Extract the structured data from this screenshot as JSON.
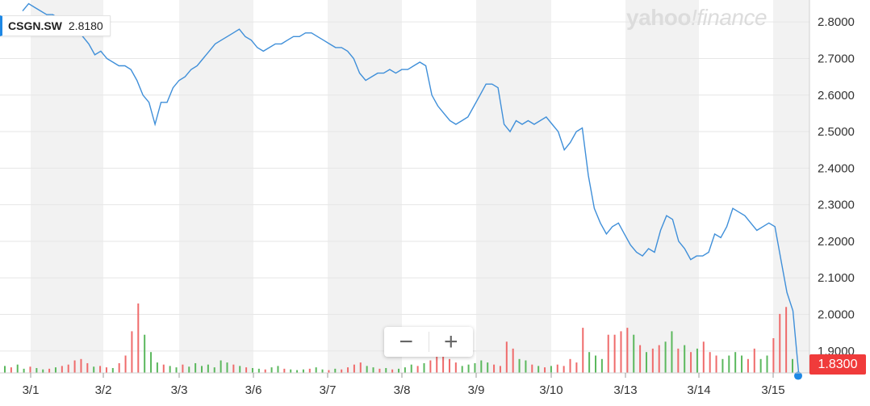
{
  "colors": {
    "line": "#3f8fd9",
    "up": "#5bb85d",
    "down": "#ef6b6b",
    "accent": "#1e88e5",
    "price_tag": "#f03b3b",
    "band": "#f2f2f2"
  },
  "legend": {
    "symbol": "CSGN.SW",
    "value": "2.8180"
  },
  "brand": {
    "left": "yahoo",
    "slash": "!",
    "right": "finance"
  },
  "zoom": {
    "minus": "−",
    "plus": "+"
  },
  "last_price": "1.8300",
  "chart_data": {
    "type": "line",
    "title": "",
    "xlabel": "",
    "ylabel": "",
    "ylim": [
      1.84,
      2.86
    ],
    "y_ticks": [
      "2.8000",
      "2.7000",
      "2.6000",
      "2.5000",
      "2.4000",
      "2.3000",
      "2.2000",
      "2.1000",
      "2.0000",
      "1.9000"
    ],
    "y_tick_values": [
      2.8,
      2.7,
      2.6,
      2.5,
      2.4,
      2.3,
      2.2,
      2.1,
      2.0,
      1.9
    ],
    "x_ticks": [
      "3/1",
      "3/2",
      "3/3",
      "3/6",
      "3/7",
      "3/8",
      "3/9",
      "3/10",
      "3/13",
      "3/14",
      "3/15"
    ],
    "grid": true,
    "series": [
      {
        "values": [
          2.83,
          2.85,
          2.84,
          2.83,
          2.82,
          2.82,
          2.81,
          2.8,
          2.79,
          2.78,
          2.76,
          2.74,
          2.71,
          2.72,
          2.7,
          2.69,
          2.68,
          2.68,
          2.67,
          2.64,
          2.6,
          2.58,
          2.52,
          2.58,
          2.58,
          2.62,
          2.64,
          2.65,
          2.67,
          2.68,
          2.7,
          2.72,
          2.74,
          2.75,
          2.76,
          2.77,
          2.78,
          2.76,
          2.75,
          2.73,
          2.72,
          2.73,
          2.74,
          2.74,
          2.75,
          2.76,
          2.76,
          2.77,
          2.77,
          2.76,
          2.75,
          2.74,
          2.73,
          2.73,
          2.72,
          2.7,
          2.66,
          2.64,
          2.65,
          2.66,
          2.66,
          2.67,
          2.66,
          2.67,
          2.67,
          2.68,
          2.69,
          2.68,
          2.6,
          2.57,
          2.55,
          2.53,
          2.52,
          2.53,
          2.54,
          2.57,
          2.6,
          2.63,
          2.63,
          2.62,
          2.52,
          2.5,
          2.53,
          2.52,
          2.53,
          2.52,
          2.53,
          2.54,
          2.52,
          2.5,
          2.45,
          2.47,
          2.5,
          2.51,
          2.38,
          2.29,
          2.25,
          2.22,
          2.24,
          2.25,
          2.22,
          2.19,
          2.17,
          2.16,
          2.18,
          2.17,
          2.23,
          2.27,
          2.26,
          2.2,
          2.18,
          2.15,
          2.16,
          2.16,
          2.17,
          2.22,
          2.21,
          2.24,
          2.29,
          2.28,
          2.27,
          2.25,
          2.23,
          2.24,
          2.25,
          2.24,
          2.15,
          2.06,
          2.01,
          1.83
        ]
      }
    ],
    "volume": [
      {
        "v": 0.1,
        "d": "up"
      },
      {
        "v": 0.08,
        "d": "down"
      },
      {
        "v": 0.12,
        "d": "up"
      },
      {
        "v": 0.06,
        "d": "up"
      },
      {
        "v": 0.09,
        "d": "down"
      },
      {
        "v": 0.07,
        "d": "up"
      },
      {
        "v": 0.05,
        "d": "up"
      },
      {
        "v": 0.06,
        "d": "down"
      },
      {
        "v": 0.08,
        "d": "up"
      },
      {
        "v": 0.1,
        "d": "down"
      },
      {
        "v": 0.12,
        "d": "down"
      },
      {
        "v": 0.18,
        "d": "down"
      },
      {
        "v": 0.2,
        "d": "down"
      },
      {
        "v": 0.14,
        "d": "down"
      },
      {
        "v": 0.09,
        "d": "up"
      },
      {
        "v": 0.1,
        "d": "down"
      },
      {
        "v": 0.08,
        "d": "down"
      },
      {
        "v": 0.07,
        "d": "up"
      },
      {
        "v": 0.14,
        "d": "down"
      },
      {
        "v": 0.25,
        "d": "down"
      },
      {
        "v": 0.6,
        "d": "down"
      },
      {
        "v": 1.0,
        "d": "down"
      },
      {
        "v": 0.55,
        "d": "up"
      },
      {
        "v": 0.3,
        "d": "up"
      },
      {
        "v": 0.15,
        "d": "up"
      },
      {
        "v": 0.12,
        "d": "down"
      },
      {
        "v": 0.1,
        "d": "up"
      },
      {
        "v": 0.08,
        "d": "up"
      },
      {
        "v": 0.12,
        "d": "down"
      },
      {
        "v": 0.09,
        "d": "up"
      },
      {
        "v": 0.14,
        "d": "up"
      },
      {
        "v": 0.1,
        "d": "up"
      },
      {
        "v": 0.12,
        "d": "up"
      },
      {
        "v": 0.08,
        "d": "up"
      },
      {
        "v": 0.18,
        "d": "up"
      },
      {
        "v": 0.15,
        "d": "up"
      },
      {
        "v": 0.12,
        "d": "down"
      },
      {
        "v": 0.1,
        "d": "up"
      },
      {
        "v": 0.08,
        "d": "down"
      },
      {
        "v": 0.07,
        "d": "up"
      },
      {
        "v": 0.06,
        "d": "up"
      },
      {
        "v": 0.05,
        "d": "down"
      },
      {
        "v": 0.08,
        "d": "up"
      },
      {
        "v": 0.1,
        "d": "up"
      },
      {
        "v": 0.06,
        "d": "down"
      },
      {
        "v": 0.05,
        "d": "up"
      },
      {
        "v": 0.04,
        "d": "up"
      },
      {
        "v": 0.05,
        "d": "up"
      },
      {
        "v": 0.06,
        "d": "down"
      },
      {
        "v": 0.08,
        "d": "up"
      },
      {
        "v": 0.05,
        "d": "up"
      },
      {
        "v": 0.04,
        "d": "down"
      },
      {
        "v": 0.06,
        "d": "up"
      },
      {
        "v": 0.05,
        "d": "down"
      },
      {
        "v": 0.08,
        "d": "down"
      },
      {
        "v": 0.12,
        "d": "down"
      },
      {
        "v": 0.15,
        "d": "down"
      },
      {
        "v": 0.1,
        "d": "up"
      },
      {
        "v": 0.08,
        "d": "up"
      },
      {
        "v": 0.06,
        "d": "down"
      },
      {
        "v": 0.07,
        "d": "up"
      },
      {
        "v": 0.05,
        "d": "down"
      },
      {
        "v": 0.06,
        "d": "up"
      },
      {
        "v": 0.08,
        "d": "up"
      },
      {
        "v": 0.12,
        "d": "up"
      },
      {
        "v": 0.1,
        "d": "down"
      },
      {
        "v": 0.14,
        "d": "up"
      },
      {
        "v": 0.18,
        "d": "down"
      },
      {
        "v": 0.3,
        "d": "down"
      },
      {
        "v": 0.25,
        "d": "down"
      },
      {
        "v": 0.2,
        "d": "down"
      },
      {
        "v": 0.15,
        "d": "down"
      },
      {
        "v": 0.1,
        "d": "up"
      },
      {
        "v": 0.12,
        "d": "up"
      },
      {
        "v": 0.14,
        "d": "up"
      },
      {
        "v": 0.18,
        "d": "up"
      },
      {
        "v": 0.15,
        "d": "up"
      },
      {
        "v": 0.12,
        "d": "down"
      },
      {
        "v": 0.1,
        "d": "down"
      },
      {
        "v": 0.45,
        "d": "down"
      },
      {
        "v": 0.35,
        "d": "down"
      },
      {
        "v": 0.2,
        "d": "up"
      },
      {
        "v": 0.18,
        "d": "up"
      },
      {
        "v": 0.12,
        "d": "down"
      },
      {
        "v": 0.1,
        "d": "up"
      },
      {
        "v": 0.08,
        "d": "down"
      },
      {
        "v": 0.1,
        "d": "up"
      },
      {
        "v": 0.12,
        "d": "down"
      },
      {
        "v": 0.1,
        "d": "down"
      },
      {
        "v": 0.2,
        "d": "down"
      },
      {
        "v": 0.15,
        "d": "down"
      },
      {
        "v": 0.65,
        "d": "down"
      },
      {
        "v": 0.3,
        "d": "up"
      },
      {
        "v": 0.25,
        "d": "up"
      },
      {
        "v": 0.2,
        "d": "up"
      },
      {
        "v": 0.55,
        "d": "down"
      },
      {
        "v": 0.55,
        "d": "down"
      },
      {
        "v": 0.6,
        "d": "down"
      },
      {
        "v": 0.65,
        "d": "down"
      },
      {
        "v": 0.55,
        "d": "up"
      },
      {
        "v": 0.4,
        "d": "down"
      },
      {
        "v": 0.3,
        "d": "up"
      },
      {
        "v": 0.35,
        "d": "down"
      },
      {
        "v": 0.4,
        "d": "down"
      },
      {
        "v": 0.45,
        "d": "up"
      },
      {
        "v": 0.6,
        "d": "up"
      },
      {
        "v": 0.35,
        "d": "down"
      },
      {
        "v": 0.4,
        "d": "up"
      },
      {
        "v": 0.3,
        "d": "down"
      },
      {
        "v": 0.35,
        "d": "up"
      },
      {
        "v": 0.45,
        "d": "down"
      },
      {
        "v": 0.3,
        "d": "down"
      },
      {
        "v": 0.25,
        "d": "down"
      },
      {
        "v": 0.2,
        "d": "up"
      },
      {
        "v": 0.25,
        "d": "up"
      },
      {
        "v": 0.3,
        "d": "up"
      },
      {
        "v": 0.25,
        "d": "up"
      },
      {
        "v": 0.2,
        "d": "down"
      },
      {
        "v": 0.35,
        "d": "down"
      },
      {
        "v": 0.2,
        "d": "up"
      },
      {
        "v": 0.25,
        "d": "up"
      },
      {
        "v": 0.5,
        "d": "down"
      },
      {
        "v": 0.85,
        "d": "down"
      },
      {
        "v": 0.95,
        "d": "down"
      },
      {
        "v": 0.2,
        "d": "up"
      }
    ]
  }
}
